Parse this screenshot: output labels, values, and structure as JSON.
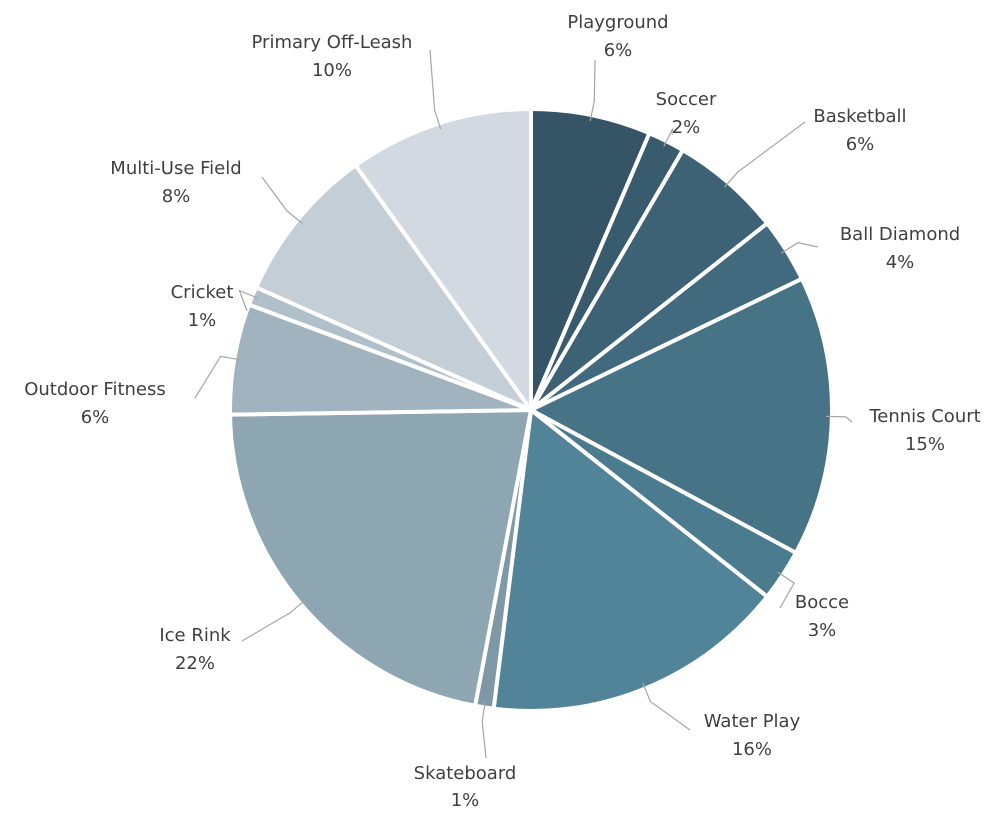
{
  "chart_data": {
    "type": "pie",
    "start_angle_deg": 0,
    "direction": "clockwise",
    "slices": [
      {
        "label": "Playground",
        "value": 6.5,
        "display": "6%",
        "color": "#355466"
      },
      {
        "label": "Soccer",
        "value": 2,
        "display": "2%",
        "color": "#395b6e"
      },
      {
        "label": "Basketball",
        "value": 6,
        "display": "6%",
        "color": "#3e6275"
      },
      {
        "label": "Ball Diamond",
        "value": 3.5,
        "display": "4%",
        "color": "#416a7e"
      },
      {
        "label": "Tennis Court",
        "value": 15.2,
        "display": "15%",
        "color": "#467386"
      },
      {
        "label": "Bocce",
        "value": 2.8,
        "display": "3%",
        "color": "#4a7b8f"
      },
      {
        "label": "Water Play",
        "value": 16.5,
        "display": "16%",
        "color": "#528499"
      },
      {
        "label": "Skateboard",
        "value": 1,
        "display": "1%",
        "color": "#7e98a6"
      },
      {
        "label": "Ice Rink",
        "value": 22,
        "display": "22%",
        "color": "#8ea6b2"
      },
      {
        "label": "Outdoor Fitness",
        "value": 6,
        "display": "6%",
        "color": "#a1b3bf"
      },
      {
        "label": "Cricket",
        "value": 1,
        "display": "1%",
        "color": "#b0c0ca"
      },
      {
        "label": "Multi-Use Field",
        "value": 8.5,
        "display": "8%",
        "color": "#c3ced6"
      },
      {
        "label": "Primary Off-Leash",
        "value": 10,
        "display": "10%",
        "color": "#d2d9e0"
      }
    ]
  }
}
